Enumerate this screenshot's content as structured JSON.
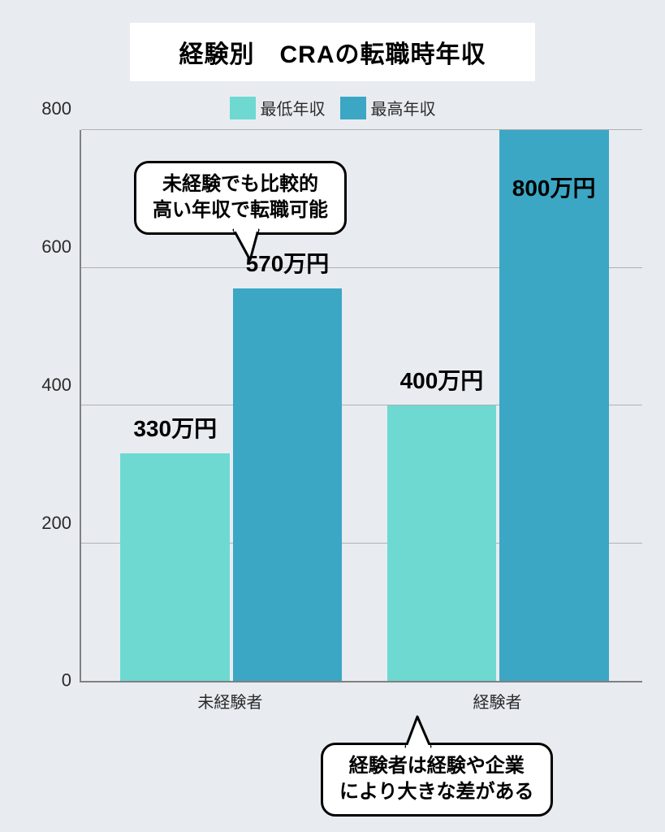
{
  "title": "経験別　CRAの転職時年収",
  "background_color": "#e8ecf1",
  "title_box_bg": "#ffffff",
  "title_fontsize": 30,
  "legend": {
    "items": [
      {
        "label": "最低年収",
        "color": "#6dd9d1"
      },
      {
        "label": "最高年収",
        "color": "#3ba7c4"
      }
    ],
    "label_fontsize": 20
  },
  "chart": {
    "type": "bar",
    "ylim": [
      0,
      800
    ],
    "ytick_step": 200,
    "yticks": [
      "0",
      "200",
      "400",
      "600",
      "800"
    ],
    "axis_color": "#808080",
    "grid_color": "#b0b0b0",
    "tick_fontsize": 22,
    "categories": [
      "未経験者",
      "経験者"
    ],
    "x_label_fontsize": 20,
    "bars": [
      {
        "category": 0,
        "series": 0,
        "value": 330,
        "color": "#6dd9d1",
        "label": "330万円"
      },
      {
        "category": 0,
        "series": 1,
        "value": 570,
        "color": "#3ba7c4",
        "label": "570万円"
      },
      {
        "category": 1,
        "series": 0,
        "value": 400,
        "color": "#6dd9d1",
        "label": "400万円"
      },
      {
        "category": 1,
        "series": 1,
        "value": 800,
        "color": "#3ba7c4",
        "label": "800万円"
      }
    ],
    "bar_label_fontsize": 28,
    "layout": {
      "bar_width_pct": 19.5,
      "bar_gap_pct": 0.5,
      "group_positions_pct": [
        7,
        54.5
      ]
    }
  },
  "bubbles": [
    {
      "lines": [
        "未経験でも比較的",
        "高い年収で転職可能"
      ],
      "fontsize": 24,
      "bg": "#ffffff",
      "border": "#000000"
    },
    {
      "lines": [
        "経験者は経験や企業",
        "により大きな差がある"
      ],
      "fontsize": 24,
      "bg": "#ffffff",
      "border": "#000000"
    }
  ]
}
